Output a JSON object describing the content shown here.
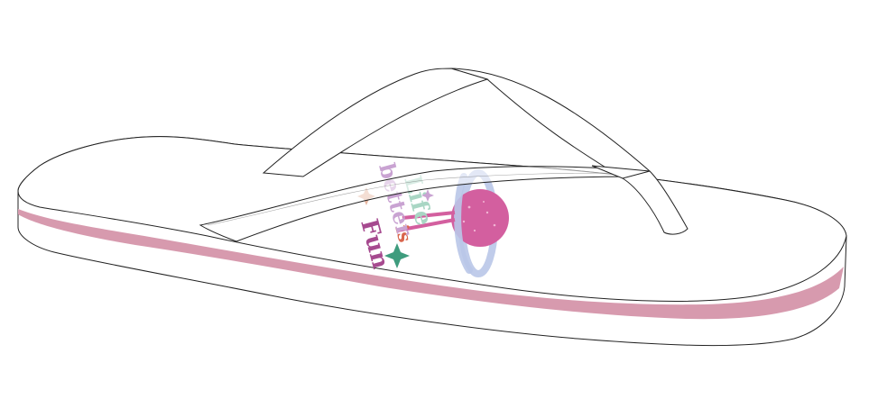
{
  "product": {
    "type": "flip-flop sandal",
    "view": "side-perspective",
    "print": {
      "text_lines": [
        "Life",
        "is",
        "better",
        "Fun"
      ]
    }
  },
  "colors": {
    "background": "#ffffff",
    "outline": "#222222",
    "sole_white": "#ffffff",
    "sole_stripe": "#d79aae",
    "planet": "#d35f9f",
    "planet_dot": "#f1b4d3",
    "ring": "#b9c6e8",
    "text_mint": "#a9d6c4",
    "text_lavender": "#c9a3d2",
    "text_magenta": "#a64a8f",
    "text_coral": "#d9654d",
    "sparkle_green": "#3e9c7d",
    "sparkle_peach": "#e7b6a0"
  }
}
